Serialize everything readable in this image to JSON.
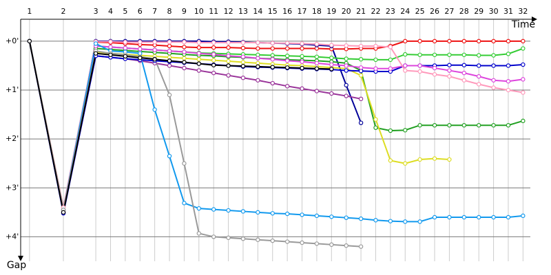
{
  "chart_data": {
    "type": "line",
    "xlabel": "Time",
    "ylabel": "Gap",
    "x": [
      0.6,
      2.9,
      5.1,
      6.1,
      7.1,
      8.1,
      9.1,
      10.1,
      11.1,
      12.1,
      13.1,
      14.1,
      15.1,
      16.1,
      17.1,
      18.1,
      19.1,
      20.1,
      21.1,
      22.1,
      23.1,
      24.1,
      25.1,
      26.1,
      27.1,
      28.1,
      29.1,
      30.1,
      31.1,
      32.1,
      33.1,
      34.1
    ],
    "xlim": [
      0,
      36
    ],
    "xticks": [
      {
        "value": 0.6,
        "label": "1"
      },
      {
        "value": 2.9,
        "label": "2"
      },
      {
        "value": 5.1,
        "label": "3"
      },
      {
        "value": 6.1,
        "label": "4"
      },
      {
        "value": 7.1,
        "label": "5"
      },
      {
        "value": 8.1,
        "label": "6"
      },
      {
        "value": 9.1,
        "label": "7"
      },
      {
        "value": 10.1,
        "label": "8"
      },
      {
        "value": 11.1,
        "label": "9"
      },
      {
        "value": 12.1,
        "label": "10"
      },
      {
        "value": 13.1,
        "label": "11"
      },
      {
        "value": 14.1,
        "label": "12"
      },
      {
        "value": 15.1,
        "label": "13"
      },
      {
        "value": 16.1,
        "label": "14"
      },
      {
        "value": 17.1,
        "label": "15"
      },
      {
        "value": 18.1,
        "label": "16"
      },
      {
        "value": 19.1,
        "label": "17"
      },
      {
        "value": 20.1,
        "label": "18"
      },
      {
        "value": 21.1,
        "label": "19"
      },
      {
        "value": 22.1,
        "label": "20"
      },
      {
        "value": 23.1,
        "label": "21"
      },
      {
        "value": 24.1,
        "label": "22"
      },
      {
        "value": 25.1,
        "label": "23"
      },
      {
        "value": 26.1,
        "label": "24"
      },
      {
        "value": 27.1,
        "label": "25"
      },
      {
        "value": 28.1,
        "label": "26"
      },
      {
        "value": 29.1,
        "label": "27"
      },
      {
        "value": 30.1,
        "label": "28"
      },
      {
        "value": 31.1,
        "label": "29"
      },
      {
        "value": 32.1,
        "label": "30"
      },
      {
        "value": 33.1,
        "label": "31"
      },
      {
        "value": 34.1,
        "label": "32"
      }
    ],
    "ylim": [
      -0.42,
      4.5
    ],
    "yticks": [
      {
        "value": 0,
        "label": "+0'"
      },
      {
        "value": 1,
        "label": "+1'"
      },
      {
        "value": 2,
        "label": "+2'"
      },
      {
        "value": 3,
        "label": "+3'"
      },
      {
        "value": 4,
        "label": "+4'"
      }
    ],
    "grid": true,
    "series": [
      {
        "color": "#ee1111",
        "values": [
          0,
          3.45,
          0.02,
          0.03,
          0.05,
          0.07,
          0.08,
          0.1,
          0.12,
          0.13,
          0.13,
          0.13,
          0.14,
          0.15,
          0.15,
          0.15,
          0.15,
          0.15,
          0.16,
          0.16,
          0.15,
          0.15,
          0.1,
          0,
          0,
          0,
          0,
          0,
          0,
          0,
          0,
          0
        ]
      },
      {
        "color": "#000099",
        "values": [
          0,
          3.5,
          0,
          0,
          0,
          0,
          0,
          0,
          0,
          0,
          0.01,
          0.01,
          0.02,
          0.03,
          0.04,
          0.05,
          0.06,
          0.08,
          0.1,
          0.9,
          1.67,
          null,
          null,
          null,
          null,
          null,
          null,
          null,
          null,
          null,
          null,
          null
        ]
      },
      {
        "color": "#33cc33",
        "values": [
          0,
          3.45,
          0.1,
          0.12,
          0.14,
          0.16,
          0.18,
          0.2,
          0.22,
          0.24,
          0.25,
          0.26,
          0.27,
          0.28,
          0.29,
          0.3,
          0.31,
          0.32,
          0.34,
          0.36,
          0.37,
          0.38,
          0.38,
          0.27,
          0.28,
          0.28,
          0.28,
          0.28,
          0.29,
          0.29,
          0.26,
          0.15
        ]
      },
      {
        "color": "#22a022",
        "values": [
          0,
          3.45,
          0.15,
          0.17,
          0.19,
          0.21,
          0.23,
          0.25,
          0.27,
          0.29,
          0.3,
          0.32,
          0.33,
          0.35,
          0.36,
          0.38,
          0.39,
          0.4,
          0.42,
          0.45,
          0.6,
          1.77,
          1.83,
          1.82,
          1.72,
          1.72,
          1.72,
          1.72,
          1.72,
          1.72,
          1.72,
          1.63
        ]
      },
      {
        "color": "#dddd22",
        "values": [
          0,
          3.4,
          0.22,
          0.25,
          0.27,
          0.29,
          0.31,
          0.33,
          0.35,
          0.37,
          0.39,
          0.41,
          0.43,
          0.45,
          0.47,
          0.49,
          0.5,
          0.52,
          0.54,
          0.56,
          0.7,
          1.6,
          2.44,
          2.5,
          2.42,
          2.4,
          2.42,
          null,
          null,
          null,
          null,
          null
        ]
      },
      {
        "color": "#993399",
        "values": [
          0,
          3.5,
          0.3,
          0.33,
          0.36,
          0.4,
          0.45,
          0.5,
          0.55,
          0.6,
          0.65,
          0.7,
          0.75,
          0.8,
          0.86,
          0.92,
          0.97,
          1.02,
          1.07,
          1.12,
          1.18,
          null,
          null,
          null,
          null,
          null,
          null,
          null,
          null,
          null,
          null,
          null
        ]
      },
      {
        "color": "#0000cc",
        "values": [
          0,
          3.52,
          0.3,
          0.33,
          0.36,
          0.38,
          0.4,
          0.42,
          0.44,
          0.46,
          0.48,
          0.5,
          0.52,
          0.53,
          0.54,
          0.55,
          0.56,
          0.57,
          0.58,
          0.6,
          0.61,
          0.62,
          0.62,
          0.5,
          0.5,
          0.5,
          0.49,
          0.49,
          0.5,
          0.5,
          0.5,
          0.48
        ]
      },
      {
        "color": "#dd44dd",
        "values": [
          0,
          3.45,
          0.1,
          0.12,
          0.14,
          0.16,
          0.18,
          0.2,
          0.22,
          0.25,
          0.27,
          0.3,
          0.32,
          0.35,
          0.37,
          0.4,
          0.42,
          0.45,
          0.48,
          0.5,
          0.54,
          0.56,
          0.56,
          0.5,
          0.5,
          0.55,
          0.6,
          0.65,
          0.72,
          0.8,
          0.82,
          0.78
        ]
      },
      {
        "color": "#ff99bb",
        "values": [
          0,
          3.4,
          0.01,
          0.01,
          0.02,
          0.02,
          0.02,
          0.02,
          0.02,
          0.03,
          0.03,
          0.03,
          0.03,
          0.03,
          0.04,
          0.04,
          0.05,
          0.06,
          0.08,
          0.09,
          0.1,
          0.1,
          0.12,
          0.6,
          0.62,
          0.68,
          0.72,
          0.8,
          0.88,
          0.95,
          1.0,
          1.05
        ]
      },
      {
        "color": "#1199ee",
        "values": [
          0,
          3.45,
          0.05,
          0.2,
          0.22,
          0.25,
          1.4,
          2.35,
          3.31,
          3.42,
          3.44,
          3.46,
          3.48,
          3.5,
          3.52,
          3.53,
          3.55,
          3.57,
          3.59,
          3.61,
          3.63,
          3.66,
          3.68,
          3.69,
          3.69,
          3.6,
          3.6,
          3.6,
          3.6,
          3.6,
          3.6,
          3.57
        ]
      },
      {
        "color": "#999999",
        "values": [
          0,
          3.45,
          0.2,
          0.25,
          0.28,
          0.32,
          0.36,
          1.1,
          2.5,
          3.93,
          4.0,
          4.02,
          4.04,
          4.06,
          4.08,
          4.1,
          4.12,
          4.14,
          4.16,
          4.18,
          4.2,
          null,
          null,
          null,
          null,
          null,
          null,
          null,
          null,
          null,
          null,
          null
        ]
      },
      {
        "color": "#000000",
        "values": [
          0,
          3.5,
          0.25,
          0.28,
          0.31,
          0.34,
          0.37,
          0.4,
          0.43,
          0.46,
          0.49,
          0.5,
          0.51,
          0.52,
          0.53,
          0.54,
          0.55,
          0.56,
          0.57,
          null,
          null,
          null,
          null,
          null,
          null,
          null,
          null,
          null,
          null,
          null,
          null,
          null
        ]
      }
    ]
  }
}
